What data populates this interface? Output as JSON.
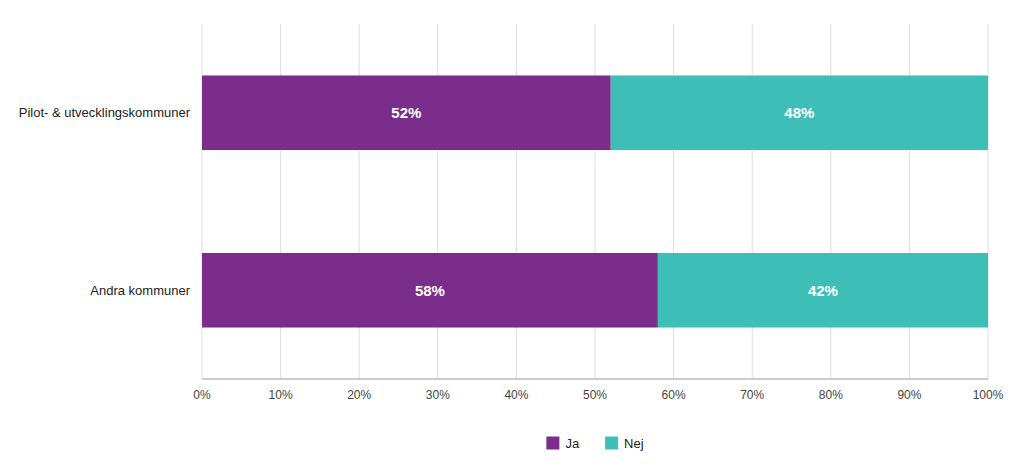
{
  "chart_data": {
    "type": "bar",
    "orientation": "horizontal",
    "stacked": true,
    "categories": [
      "Pilot- & utvecklingskommuner",
      "Andra kommuner"
    ],
    "series": [
      {
        "name": "Ja",
        "color": "#7B2D8B",
        "values": [
          52,
          58
        ],
        "value_labels": [
          "52%",
          "58%"
        ]
      },
      {
        "name": "Nej",
        "color": "#3DBFB8",
        "values": [
          48,
          42
        ],
        "value_labels": [
          "48%",
          "42%"
        ]
      }
    ],
    "xlim": [
      0,
      100
    ],
    "xticks": [
      {
        "value": 0,
        "label": "0%"
      },
      {
        "value": 10,
        "label": "10%"
      },
      {
        "value": 20,
        "label": "20%"
      },
      {
        "value": 30,
        "label": "30%"
      },
      {
        "value": 40,
        "label": "40%"
      },
      {
        "value": 50,
        "label": "50%"
      },
      {
        "value": 60,
        "label": "60%"
      },
      {
        "value": 70,
        "label": "70%"
      },
      {
        "value": 80,
        "label": "80%"
      },
      {
        "value": 90,
        "label": "90%"
      },
      {
        "value": 100,
        "label": "100%"
      }
    ],
    "grid": true,
    "legend": "bottom",
    "data_labels": true
  }
}
